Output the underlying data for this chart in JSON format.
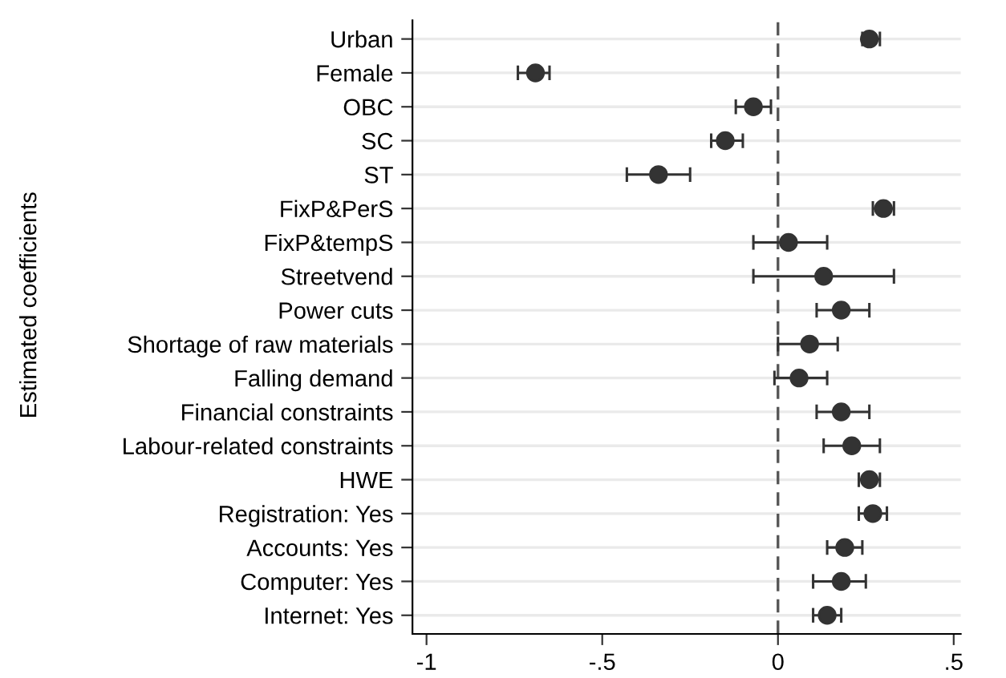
{
  "chart_data": {
    "type": "scatter",
    "orientation": "horizontal",
    "ylabel": "Estimated coefficients",
    "categories": [
      "Urban",
      "Female",
      "OBC",
      "SC",
      "ST",
      "FixP&PerS",
      "FixP&tempS",
      "Streetvend",
      "Power cuts",
      "Shortage of raw materials",
      "Falling demand",
      "Financial constraints",
      "Labour-related constraints",
      "HWE",
      "Registration: Yes",
      "Accounts: Yes",
      "Computer: Yes",
      "Internet: Yes"
    ],
    "series": [
      {
        "color": "#333333",
        "values": [
          0.26,
          -0.69,
          -0.07,
          -0.15,
          -0.34,
          0.3,
          0.03,
          0.13,
          0.18,
          0.09,
          0.06,
          0.18,
          0.21,
          0.26,
          0.27,
          0.19,
          0.18,
          0.14
        ],
        "errors": [
          [
            0.24,
            0.29
          ],
          [
            -0.74,
            -0.65
          ],
          [
            -0.12,
            -0.02
          ],
          [
            -0.19,
            -0.1
          ],
          [
            -0.43,
            -0.25
          ],
          [
            0.27,
            0.33
          ],
          [
            -0.07,
            0.14
          ],
          [
            -0.07,
            0.33
          ],
          [
            0.11,
            0.26
          ],
          [
            0.0,
            0.17
          ],
          [
            -0.01,
            0.14
          ],
          [
            0.11,
            0.26
          ],
          [
            0.13,
            0.29
          ],
          [
            0.23,
            0.29
          ],
          [
            0.23,
            0.31
          ],
          [
            0.14,
            0.24
          ],
          [
            0.1,
            0.25
          ],
          [
            0.1,
            0.18
          ]
        ]
      }
    ],
    "xlim": [
      -1.04,
      0.52
    ],
    "xticks": [
      {
        "value": -1,
        "label": "-1"
      },
      {
        "value": -0.5,
        "label": "-.5"
      },
      0,
      {
        "value": 0.5,
        "label": ".5"
      }
    ],
    "ref_lines": [
      {
        "axis": "x",
        "value": 0,
        "color": "#555555",
        "line_style": "dashed"
      }
    ],
    "grid": "y",
    "marker": "circle"
  }
}
